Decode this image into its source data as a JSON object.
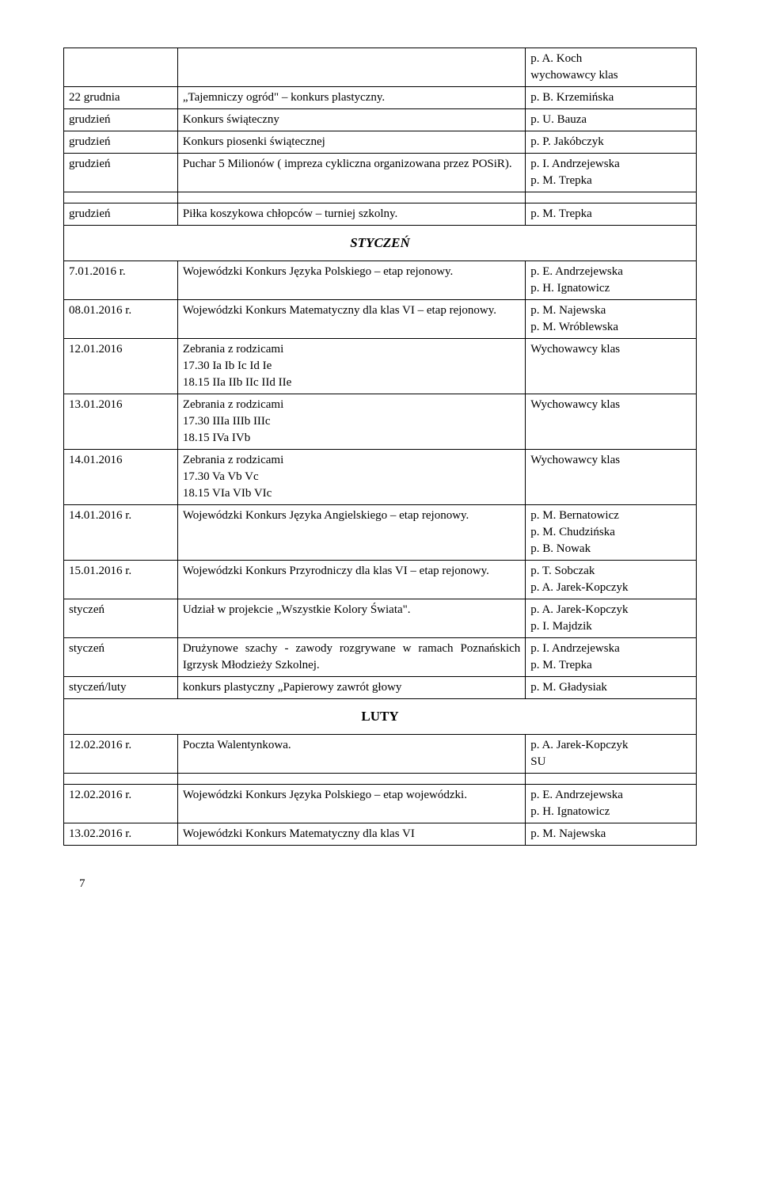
{
  "table1": {
    "rows": [
      {
        "c1": "",
        "c2": "",
        "c3": "p. A. Koch\nwychowawcy klas"
      },
      {
        "c1": "22 grudnia",
        "c2": "„Tajemniczy ogród\" – konkurs plastyczny.",
        "c3": "p. B. Krzemińska"
      },
      {
        "c1": "grudzień",
        "c2": "Konkurs świąteczny",
        "c3": "p. U. Bauza"
      },
      {
        "c1": "grudzień",
        "c2": "Konkurs piosenki świątecznej",
        "c3": "p. P. Jakóbczyk"
      },
      {
        "c1": "grudzień",
        "c2": "Puchar 5 Milionów ( impreza cykliczna organizowana przez POSiR).",
        "c3": "p. I. Andrzejewska\np. M. Trepka"
      }
    ]
  },
  "table2": {
    "rows": [
      {
        "c1": "grudzień",
        "c2": "Piłka koszykowa chłopców – turniej szkolny.",
        "c3": "p. M. Trepka"
      }
    ]
  },
  "heading1": "STYCZEŃ",
  "table3": {
    "rows": [
      {
        "c1": "7.01.2016 r.",
        "c2": "Wojewódzki Konkurs Języka Polskiego – etap rejonowy.",
        "c3": "p. E. Andrzejewska\np. H. Ignatowicz"
      },
      {
        "c1": "08.01.2016 r.",
        "c2": "Wojewódzki Konkurs Matematyczny dla klas VI – etap rejonowy.",
        "c3": "p. M. Najewska\np. M. Wróblewska"
      },
      {
        "c1": "12.01.2016",
        "c2": "Zebrania z rodzicami\n17.30 Ia Ib Ic Id Ie\n18.15 IIa IIb IIc IId IIe",
        "c3": "Wychowawcy klas"
      },
      {
        "c1": "13.01.2016",
        "c2": "Zebrania z rodzicami\n17.30 IIIa IIIb IIIc\n18.15 IVa IVb",
        "c3": "Wychowawcy klas"
      },
      {
        "c1": "14.01.2016",
        "c2": "Zebrania z rodzicami\n17.30 Va Vb Vc\n18.15 VIa VIb VIc",
        "c3": "Wychowawcy klas"
      },
      {
        "c1": "14.01.2016 r.",
        "c2": "Wojewódzki Konkurs Języka Angielskiego – etap rejonowy.",
        "c3": "p. M. Bernatowicz\np. M. Chudzińska\np. B. Nowak"
      },
      {
        "c1": "15.01.2016 r.",
        "c2": "Wojewódzki Konkurs Przyrodniczy dla klas VI – etap rejonowy.",
        "c3": "p. T. Sobczak\np. A. Jarek-Kopczyk"
      },
      {
        "c1": "styczeń",
        "c2": "Udział w projekcie „Wszystkie Kolory Świata\".",
        "c3": "p. A. Jarek-Kopczyk\np. I.  Majdzik"
      },
      {
        "c1": "styczeń",
        "c2": "Drużynowe szachy - zawody  rozgrywane w ramach Poznańskich Igrzysk Młodzieży Szkolnej.",
        "c3": "p. I. Andrzejewska\np. M. Trepka"
      },
      {
        "c1": "styczeń/luty",
        "c2": "konkurs plastyczny „Papierowy zawrót głowy",
        "c3": "p. M. Gładysiak"
      }
    ]
  },
  "heading2": "LUTY",
  "table4": {
    "rows": [
      {
        "c1": "12.02.2016 r.",
        "c2": "Poczta Walentynkowa.",
        "c3": "p. A. Jarek-Kopczyk\nSU"
      }
    ]
  },
  "table5": {
    "rows": [
      {
        "c1": "12.02.2016 r.",
        "c2": "Wojewódzki Konkurs Języka Polskiego – etap wojewódzki.",
        "c3": "p. E. Andrzejewska\np. H. Ignatowicz"
      },
      {
        "c1": "13.02.2016 r.",
        "c2": "Wojewódzki Konkurs Matematyczny dla klas VI",
        "c3": "p. M. Najewska"
      }
    ]
  },
  "page_number": "7"
}
